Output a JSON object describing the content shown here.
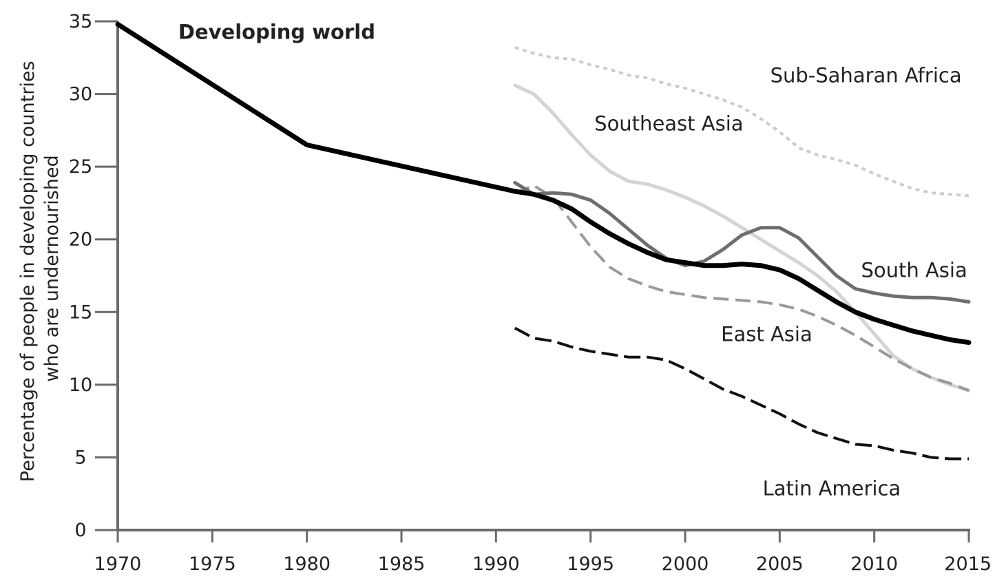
{
  "chart_data": {
    "type": "line",
    "xlabel": "",
    "ylabel_lines": [
      "Percentage of people in developing countries",
      "who are undernourished"
    ],
    "xlim": [
      1970,
      2015
    ],
    "ylim": [
      0,
      35
    ],
    "x_ticks": [
      1970,
      1975,
      1980,
      1985,
      1990,
      1995,
      2000,
      2005,
      2010,
      2015
    ],
    "y_ticks": [
      0,
      5,
      10,
      15,
      20,
      25,
      30,
      35
    ],
    "grid": false,
    "legend": "none",
    "series": [
      {
        "name": "Developing world",
        "color": "#000000",
        "style": "solid",
        "bold_label": true,
        "label_pos": [
          1973.2,
          33.8
        ],
        "x": [
          1970,
          1980,
          1991,
          1992,
          1993,
          1994,
          1995,
          1996,
          1997,
          1998,
          1999,
          2000,
          2001,
          2002,
          2003,
          2004,
          2005,
          2006,
          2007,
          2008,
          2009,
          2010,
          2011,
          2012,
          2013,
          2014,
          2015
        ],
        "y": [
          34.8,
          26.5,
          23.3,
          23.1,
          22.7,
          22.1,
          21.2,
          20.4,
          19.7,
          19.1,
          18.6,
          18.4,
          18.2,
          18.2,
          18.3,
          18.2,
          17.9,
          17.3,
          16.5,
          15.7,
          15.0,
          14.5,
          14.1,
          13.7,
          13.4,
          13.1,
          12.9
        ]
      },
      {
        "name": "Sub-Saharan Africa",
        "color": "#cccccc",
        "style": "dotted",
        "label_pos": [
          2004.5,
          30.8
        ],
        "x": [
          1991,
          1992,
          1993,
          1994,
          1995,
          1996,
          1997,
          1998,
          1999,
          2000,
          2001,
          2002,
          2003,
          2004,
          2005,
          2006,
          2007,
          2008,
          2009,
          2010,
          2011,
          2012,
          2013,
          2014,
          2015
        ],
        "y": [
          33.2,
          32.8,
          32.5,
          32.4,
          32.0,
          31.7,
          31.3,
          31.1,
          30.7,
          30.4,
          30.0,
          29.6,
          29.1,
          28.3,
          27.4,
          26.3,
          25.8,
          25.5,
          25.1,
          24.5,
          24.0,
          23.5,
          23.2,
          23.1,
          23.0
        ]
      },
      {
        "name": "Southeast Asia",
        "color": "#d4d4d4",
        "style": "solid",
        "label_pos": [
          1995.2,
          27.5
        ],
        "x": [
          1991,
          1992,
          1993,
          1994,
          1995,
          1996,
          1997,
          1998,
          1999,
          2000,
          2001,
          2002,
          2003,
          2004,
          2005,
          2006,
          2007,
          2008,
          2009,
          2010,
          2011,
          2012,
          2013,
          2014,
          2015
        ],
        "y": [
          30.6,
          30.0,
          28.7,
          27.2,
          25.8,
          24.7,
          24.0,
          23.8,
          23.4,
          22.9,
          22.3,
          21.6,
          20.8,
          20.0,
          19.2,
          18.4,
          17.5,
          16.4,
          15.0,
          13.5,
          12.0,
          11.1,
          10.5,
          10.0,
          9.6
        ]
      },
      {
        "name": "South Asia",
        "color": "#6e6e6e",
        "style": "solid",
        "label_pos": [
          2009.3,
          17.4
        ],
        "x": [
          1991,
          1992,
          1993,
          1994,
          1995,
          1996,
          1997,
          1998,
          1999,
          2000,
          2001,
          2002,
          2003,
          2004,
          2005,
          2006,
          2007,
          2008,
          2009,
          2010,
          2011,
          2012,
          2013,
          2014,
          2015
        ],
        "y": [
          23.9,
          23.1,
          23.2,
          23.1,
          22.7,
          21.8,
          20.7,
          19.6,
          18.7,
          18.2,
          18.5,
          19.3,
          20.3,
          20.8,
          20.8,
          20.1,
          18.8,
          17.5,
          16.6,
          16.3,
          16.1,
          16.0,
          16.0,
          15.9,
          15.7
        ]
      },
      {
        "name": "East Asia",
        "color": "#9a9a9a",
        "style": "dashed",
        "label_pos": [
          2001.9,
          13.0
        ],
        "x": [
          1991,
          1992,
          1993,
          1994,
          1995,
          1996,
          1997,
          1998,
          1999,
          2000,
          2001,
          2002,
          2003,
          2004,
          2005,
          2006,
          2007,
          2008,
          2009,
          2010,
          2011,
          2012,
          2013,
          2014,
          2015
        ],
        "y": [
          23.2,
          23.7,
          22.9,
          21.2,
          19.5,
          18.1,
          17.3,
          16.8,
          16.4,
          16.2,
          16.0,
          15.9,
          15.8,
          15.7,
          15.5,
          15.2,
          14.7,
          14.1,
          13.4,
          12.6,
          11.8,
          11.1,
          10.5,
          10.1,
          9.6
        ]
      },
      {
        "name": "Latin America",
        "color": "#111111",
        "style": "longdash",
        "label_pos": [
          2004.1,
          2.4
        ],
        "x": [
          1991,
          1992,
          1993,
          1994,
          1995,
          1996,
          1997,
          1998,
          1999,
          2000,
          2001,
          2002,
          2003,
          2004,
          2005,
          2006,
          2007,
          2008,
          2009,
          2010,
          2011,
          2012,
          2013,
          2014,
          2015
        ],
        "y": [
          13.9,
          13.2,
          13.0,
          12.6,
          12.3,
          12.1,
          11.9,
          11.9,
          11.7,
          11.1,
          10.4,
          9.7,
          9.2,
          8.6,
          8.0,
          7.3,
          6.7,
          6.3,
          5.9,
          5.8,
          5.5,
          5.3,
          5.0,
          4.9,
          4.9
        ]
      }
    ]
  }
}
